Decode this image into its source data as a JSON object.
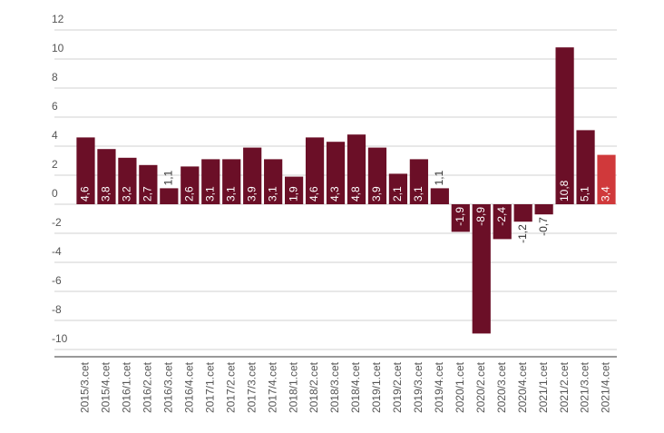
{
  "chart_data": {
    "type": "bar",
    "categories": [
      "2015/3.cet",
      "2015/4.cet",
      "2016/1.cet",
      "2016/2.cet",
      "2016/3.cet",
      "2016/4.cet",
      "2017/1.cet",
      "2017/2.cet",
      "2017/3.cet",
      "2017/4.cet",
      "2018/1.cet",
      "2018/2.cet",
      "2018/3.cet",
      "2018/4.cet",
      "2019/1.cet",
      "2019/2.cet",
      "2019/3.cet",
      "2019/4.cet",
      "2020/1.cet",
      "2020/2.cet",
      "2020/3.cet",
      "2020/4.cet",
      "2021/1.cet",
      "2021/2.cet",
      "2021/3.cet",
      "2021/4.cet"
    ],
    "values": [
      4.6,
      3.8,
      3.2,
      2.7,
      1.1,
      2.6,
      3.1,
      3.1,
      3.9,
      3.1,
      1.9,
      4.6,
      4.3,
      4.8,
      3.9,
      2.1,
      3.1,
      1.1,
      -1.9,
      -8.9,
      -2.4,
      -1.2,
      -0.7,
      10.8,
      5.1,
      3.4
    ],
    "value_labels": [
      "4,6",
      "3,8",
      "3,2",
      "2,7",
      "1,1",
      "2,6",
      "3,1",
      "3,1",
      "3,9",
      "3,1",
      "1,9",
      "4,6",
      "4,3",
      "4,8",
      "3,9",
      "2,1",
      "3,1",
      "1,1",
      "-1,9",
      "-8,9",
      "-2,4",
      "-1,2",
      "-0,7",
      "10,8",
      "5,1",
      "3,4"
    ],
    "colors": [
      "#6b0f27",
      "#6b0f27",
      "#6b0f27",
      "#6b0f27",
      "#6b0f27",
      "#6b0f27",
      "#6b0f27",
      "#6b0f27",
      "#6b0f27",
      "#6b0f27",
      "#6b0f27",
      "#6b0f27",
      "#6b0f27",
      "#6b0f27",
      "#6b0f27",
      "#6b0f27",
      "#6b0f27",
      "#6b0f27",
      "#6b0f27",
      "#6b0f27",
      "#6b0f27",
      "#6b0f27",
      "#6b0f27",
      "#6b0f27",
      "#6b0f27",
      "#d0393b"
    ],
    "ylim": [
      -10.5,
      12
    ],
    "yticks": [
      12,
      10,
      8,
      6,
      4,
      2,
      0,
      -2,
      -4,
      -6,
      -8,
      -10
    ],
    "grid": true
  }
}
